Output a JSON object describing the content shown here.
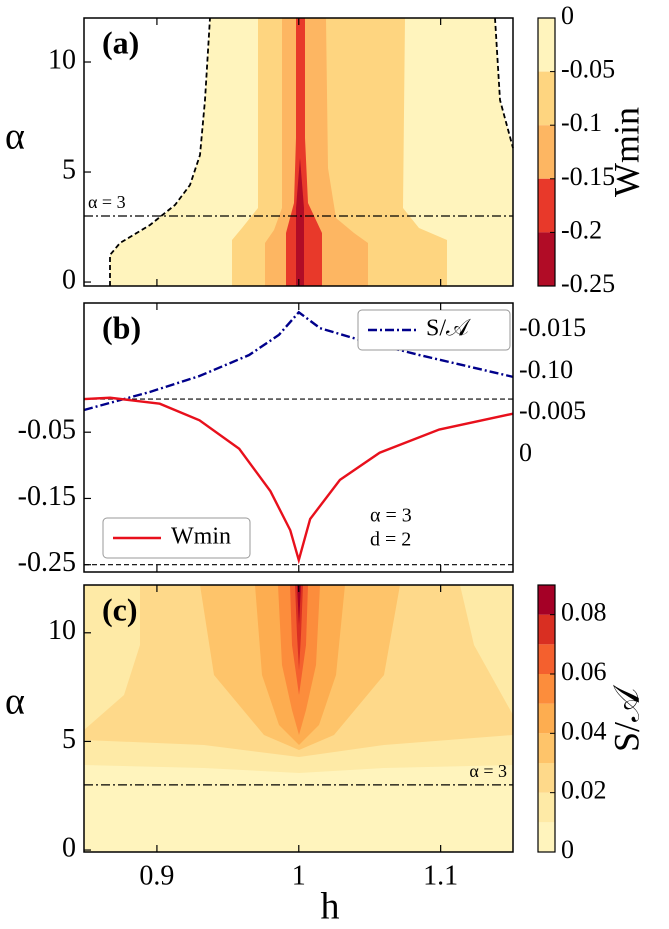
{
  "chart_data": [
    {
      "type": "contour",
      "title": "(a)",
      "ylabel": "α",
      "colorbar_label": "Wmin",
      "xlim": [
        0.8486,
        1.151
      ],
      "xticks": [
        0.9,
        1,
        1.1
      ],
      "xtick_labels": false,
      "ylim": [
        -0.18,
        12
      ],
      "yticks": [
        0,
        5,
        10
      ],
      "cblim": [
        -0.25,
        0
      ],
      "levels": [
        0,
        -0.05,
        -0.1,
        -0.15,
        -0.2,
        -0.25
      ],
      "colors": [
        "#fff4bd",
        "#fed580",
        "#fdb662",
        "#e8392a",
        "#b10c26"
      ],
      "hline": 3,
      "annotation": "α = 3"
    },
    {
      "type": "line",
      "title": "(b)",
      "xlim": [
        0.8486,
        1.151
      ],
      "xticks": [
        0.9,
        1,
        1.1
      ],
      "xtick_labels": false,
      "ylim": [
        -0.261,
        0.145
      ],
      "yticks": [
        -0.05,
        -0.15,
        -0.25
      ],
      "ytick_color": "#e8001c",
      "y2lim": [
        -0.0279,
        0.0362
      ],
      "y2_labels": [
        "-0.015",
        "-0.10",
        "-0.005",
        "0"
      ],
      "y2_label_color": "#1a1a99",
      "hlines": [
        0,
        -0.25
      ],
      "annotations": [
        "α = 3",
        "d = 2"
      ],
      "series": [
        {
          "name": "S/𝒜",
          "color": "#00008b",
          "axis": "y2",
          "x": [
            0.8486,
            0.895,
            0.93,
            0.965,
            0.986,
            1.0,
            1.015,
            1.043,
            1.085,
            1.151
          ],
          "values": [
            0.0107,
            0.015,
            0.0188,
            0.0238,
            0.0286,
            0.034,
            0.0302,
            0.0274,
            0.0238,
            0.0186
          ]
        },
        {
          "name": "Wmin",
          "color": "#e8101c",
          "x": [
            0.8486,
            0.867,
            0.902,
            0.93,
            0.958,
            0.98,
            0.994,
            1.0,
            1.008,
            1.029,
            1.057,
            1.099,
            1.151
          ],
          "values": [
            0,
            0.002,
            -0.007,
            -0.032,
            -0.075,
            -0.139,
            -0.198,
            -0.243,
            -0.181,
            -0.122,
            -0.081,
            -0.046,
            -0.022
          ]
        }
      ]
    },
    {
      "type": "contour",
      "title": "(c)",
      "ylabel": "α",
      "xlabel": "h",
      "colorbar_label": "S/𝒜",
      "xlim": [
        0.8486,
        1.151
      ],
      "xticks": [
        0.9,
        1,
        1.1
      ],
      "xtick_labels": true,
      "ylim": [
        -0.09,
        12.2
      ],
      "yticks": [
        0,
        5,
        10
      ],
      "cblim": [
        0,
        0.09
      ],
      "cbticks": [
        0,
        0.02,
        0.04,
        0.06,
        0.08
      ],
      "levels": [
        0,
        0.01,
        0.02,
        0.03,
        0.04,
        0.05,
        0.06,
        0.07,
        0.08,
        0.09
      ],
      "colors": [
        "#fff4bd",
        "#feeaa6",
        "#fed98a",
        "#fec46a",
        "#fdad50",
        "#fc8d3c",
        "#f4602e",
        "#d92f22",
        "#a50026"
      ],
      "hline": 3,
      "annotation": "α = 3"
    }
  ]
}
